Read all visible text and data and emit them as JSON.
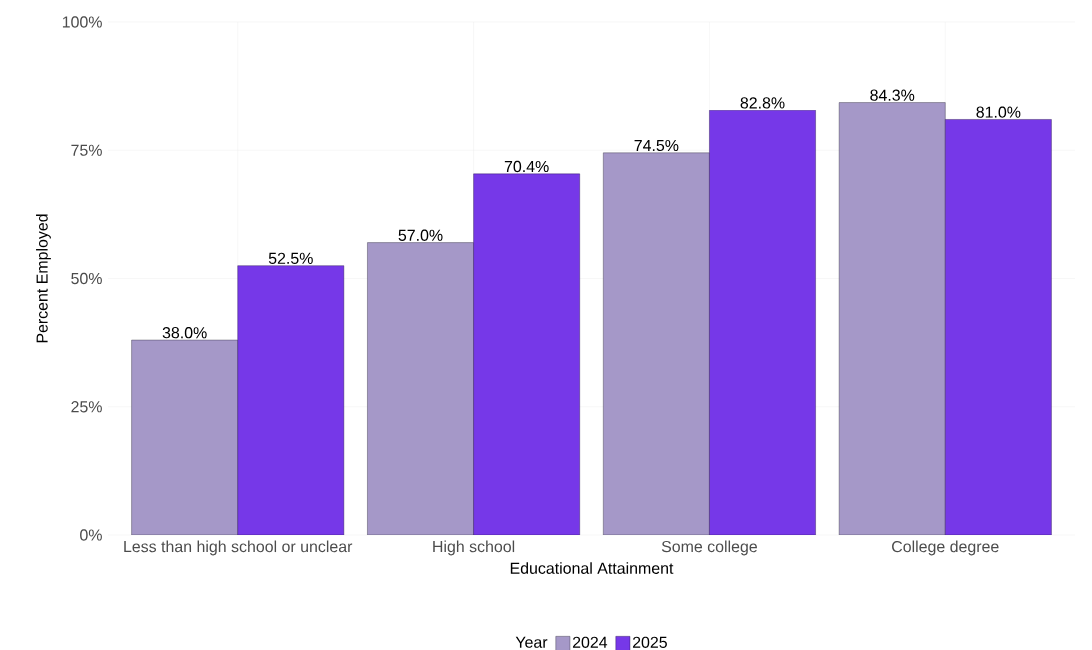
{
  "chart_data": {
    "type": "bar",
    "xlabel": "Educational Attainment",
    "ylabel": "Percent Employed",
    "legend_title": "Year",
    "categories": [
      "Less than high school or unclear",
      "High school",
      "Some college",
      "College degree"
    ],
    "series": [
      {
        "name": "2024",
        "color": "#a598c8",
        "values": [
          38.0,
          57.0,
          74.5,
          84.3
        ],
        "value_labels": [
          "38.0%",
          "57.0%",
          "74.5%",
          "84.3%"
        ]
      },
      {
        "name": "2025",
        "color": "#7638e8",
        "values": [
          52.5,
          70.4,
          82.8,
          81.0
        ],
        "value_labels": [
          "52.5%",
          "70.4%",
          "82.8%",
          "81.0%"
        ]
      }
    ],
    "ylim": [
      0,
      100
    ],
    "yticks": [
      {
        "value": 0,
        "label": "0%"
      },
      {
        "value": 25,
        "label": "25%"
      },
      {
        "value": 50,
        "label": "50%"
      },
      {
        "value": 75,
        "label": "75%"
      },
      {
        "value": 100,
        "label": "100%"
      }
    ],
    "grid": true,
    "legend": "bottom"
  }
}
